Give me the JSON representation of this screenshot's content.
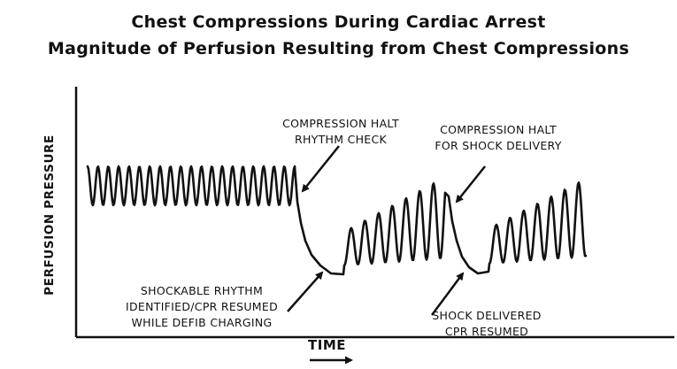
{
  "title_line1": "Chest Compressions During Cardiac Arrest",
  "title_line2": "Magnitude of Perfusion Resulting from Chest Compressions",
  "y_axis_label": "PERFUSION PRESSURE",
  "x_axis_label": "TIME",
  "annotations": {
    "compression_halt_rhythm_check": [
      "COMPRESSION HALT",
      "RHYTHM CHECK"
    ],
    "compression_halt_shock": [
      "COMPRESSION HALT",
      "FOR SHOCK DELIVERY"
    ],
    "shockable_rhythm": [
      "SHOCKABLE RHYTHM",
      "IDENTIFIED/CPR RESUMED",
      "WHILE DEFIB CHARGING"
    ],
    "shock_delivered": [
      "SHOCK DELIVERED",
      "CPR RESUMED"
    ]
  },
  "colors": {
    "line": "#111111",
    "background": "#ffffff"
  }
}
